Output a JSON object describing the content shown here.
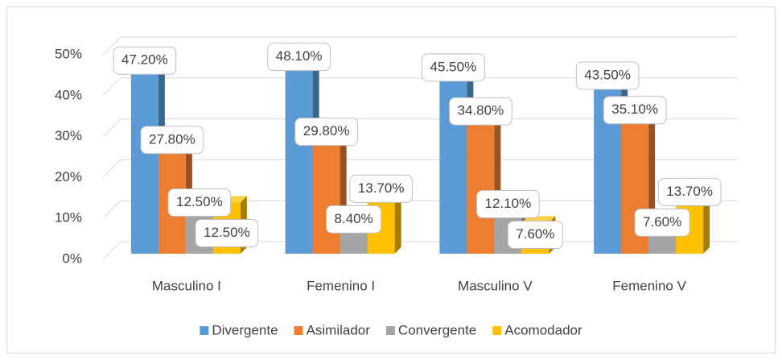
{
  "chart_data": {
    "type": "bar3d",
    "categories": [
      "Masculino I",
      "Femenino I",
      "Masculino V",
      "Femenino V"
    ],
    "series": [
      {
        "name": "Divergente",
        "color": "#5b9bd5",
        "values": [
          47.2,
          48.1,
          45.5,
          43.5
        ],
        "value_labels": [
          "47.20%",
          "48.10%",
          "45.50%",
          "43.50%"
        ]
      },
      {
        "name": "Asimilador",
        "color": "#ed7d31",
        "values": [
          27.8,
          29.8,
          34.8,
          35.1
        ],
        "value_labels": [
          "27.80%",
          "29.80%",
          "34.80%",
          "35.10%"
        ]
      },
      {
        "name": "Convergente",
        "color": "#a5a5a5",
        "values": [
          12.5,
          8.4,
          12.1,
          7.6
        ],
        "value_labels": [
          "12.50%",
          "8.40%",
          "12.10%",
          "7.60%"
        ]
      },
      {
        "name": "Acomodador",
        "color": "#ffc000",
        "values": [
          12.5,
          13.7,
          7.6,
          13.7
        ],
        "value_labels": [
          "12.50%",
          "13.70%",
          "7.60%",
          "13.70%"
        ]
      }
    ],
    "ylim": [
      0,
      50
    ],
    "yticks": [
      {
        "value": 0,
        "label": "0%"
      },
      {
        "value": 10,
        "label": "10%"
      },
      {
        "value": 20,
        "label": "20%"
      },
      {
        "value": 30,
        "label": "30%"
      },
      {
        "value": 40,
        "label": "40%"
      },
      {
        "value": 50,
        "label": "50%"
      }
    ],
    "grid": true,
    "legend": "bottom"
  }
}
